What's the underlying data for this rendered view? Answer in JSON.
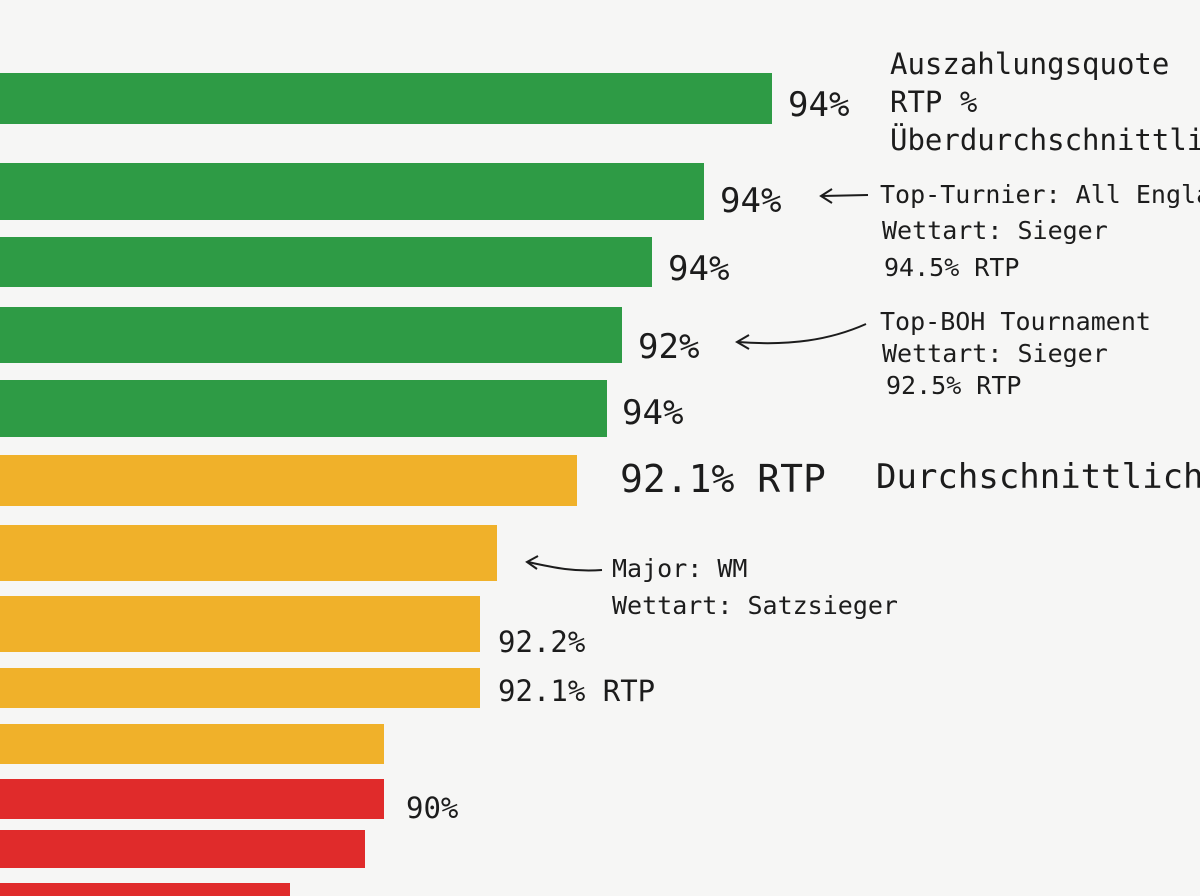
{
  "chart_data": {
    "type": "bar",
    "orientation": "horizontal",
    "title": "Auszahlungsquote",
    "subtitle": "RTP %",
    "value_unit": "%",
    "bars": [
      {
        "value": 94,
        "label": "94%",
        "color": "#2e9b45"
      },
      {
        "value": 94,
        "label": "94%",
        "color": "#2e9b45"
      },
      {
        "value": 94,
        "label": "94%",
        "color": "#2e9b45"
      },
      {
        "value": 92,
        "label": "92%",
        "color": "#2e9b45"
      },
      {
        "value": 94,
        "label": "94%",
        "color": "#2e9b45"
      },
      {
        "value": 92.1,
        "label": "92.1% RTP",
        "color": "#f0b12a"
      },
      {
        "value": null,
        "label": "",
        "color": "#f0b12a"
      },
      {
        "value": 92.2,
        "label": "92.2%",
        "color": "#f0b12a"
      },
      {
        "value": 92.1,
        "label": "92.1% RTP",
        "color": "#f0b12a"
      },
      {
        "value": null,
        "label": "",
        "color": "#f0b12a"
      },
      {
        "value": 90,
        "label": "90%",
        "color": "#e02b2b"
      },
      {
        "value": null,
        "label": "",
        "color": "#e02b2b"
      },
      {
        "value": null,
        "label": "",
        "color": "#e02b2b"
      }
    ],
    "categories": [
      {
        "name": "Überdurchschnittlich",
        "color": "#2e9b45"
      },
      {
        "name": "Durchschnittlich",
        "color": "#f0b12a"
      }
    ],
    "annotations": [
      {
        "lines": [
          "Top-Turnier: All England",
          "Wettart: Sieger",
          "94.5% RTP"
        ],
        "points_to_bar": 1
      },
      {
        "lines": [
          "Top-BOH Tournament",
          "Wettart: Sieger",
          "92.5% RTP"
        ],
        "points_to_bar": 3
      },
      {
        "lines": [
          "Major: WM",
          "Wettart: Satzsieger"
        ],
        "points_to_bar": 6
      }
    ]
  }
}
